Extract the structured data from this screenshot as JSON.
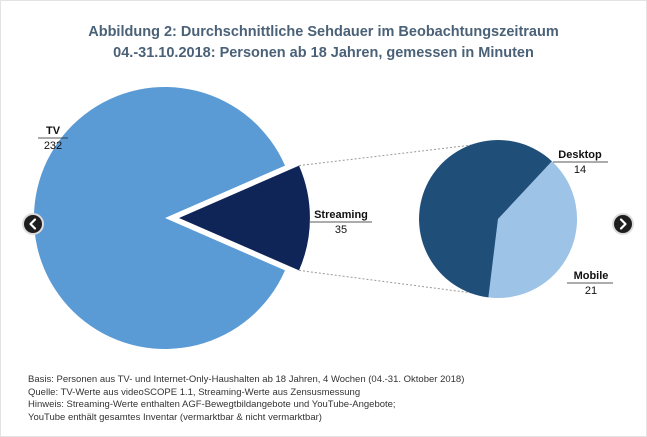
{
  "title_line1": "Abbildung 2: Durchschnittliche Sehdauer im Beobachtungszeitraum",
  "title_line2": "04.-31.10.2018: Personen ab 18 Jahren, gemessen in Minuten",
  "chart_data": [
    {
      "type": "pie",
      "slices": [
        {
          "label": "TV",
          "value": 232,
          "color": "#5b9bd5"
        },
        {
          "label": "Streaming",
          "value": 35,
          "color": "#0f2557"
        }
      ],
      "exploded": "Streaming"
    },
    {
      "type": "pie",
      "breakdown_of": "Streaming",
      "slices": [
        {
          "label": "Desktop",
          "value": 14,
          "color": "#9dc3e6"
        },
        {
          "label": "Mobile",
          "value": 21,
          "color": "#1f4e79"
        }
      ]
    }
  ],
  "notes": [
    "Basis: Personen aus TV- und Internet-Only-Haushalten ab 18 Jahren, 4 Wochen (04.-31. Oktober 2018)",
    "Quelle: TV-Werte aus videoSCOPE 1.1, Streaming-Werte aus Zensusmessung",
    "Hinweis: Streaming-Werte enthalten AGF-Bewegtbildangebote und YouTube-Angebote;",
    "YouTube enthält gesamtes Inventar (vermarktbar & nicht vermarktbar)"
  ],
  "nav": {
    "prev_icon": "chevron-left-icon",
    "next_icon": "chevron-right-icon"
  }
}
